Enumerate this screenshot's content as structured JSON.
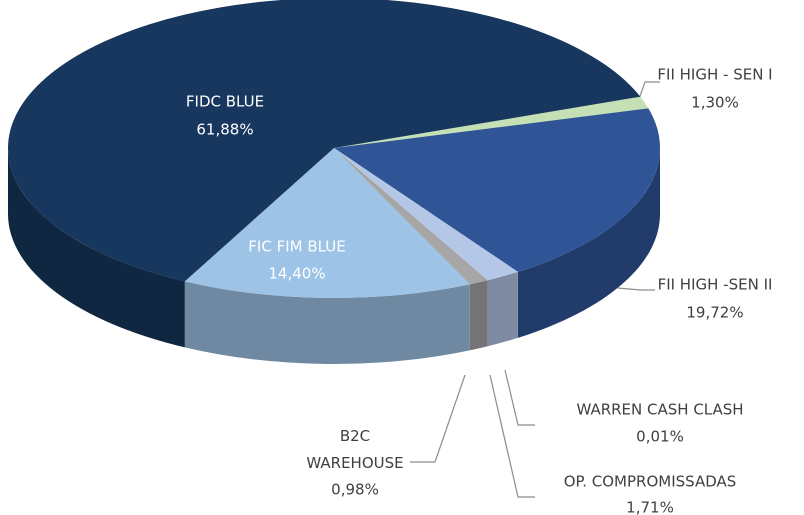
{
  "chart_data": {
    "type": "pie",
    "categories": [
      "FII HIGH - SEN I",
      "FII HIGH -SEN II",
      "WARREN CASH CLASH",
      "OP. COMPROMISSADAS",
      "B2C\nWAREHOUSE",
      "FIC FIM BLUE",
      "FIDC BLUE"
    ],
    "values": [
      1.3,
      19.72,
      0.01,
      1.71,
      0.98,
      14.4,
      61.88
    ],
    "value_labels": [
      "1,30%",
      "19,72%",
      "0,01%",
      "1,71%",
      "0,98%",
      "14,40%",
      "61,88%"
    ],
    "colors": [
      "#c5e0b4",
      "#2f5597",
      "#d9d9d9",
      "#b4c7e7",
      "#a6a6a6",
      "#9dc3e6",
      "#17375e"
    ]
  }
}
